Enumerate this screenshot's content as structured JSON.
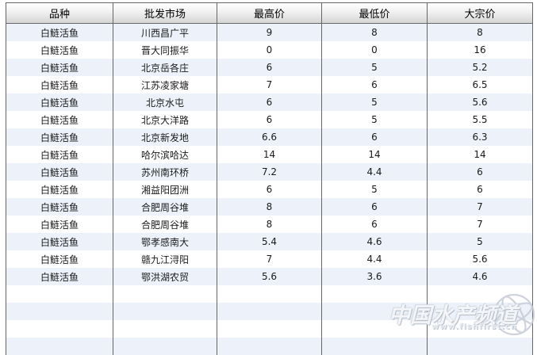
{
  "table": {
    "columns": [
      "品种",
      "批发市场",
      "最高价",
      "最低价",
      "大宗价"
    ],
    "rows": [
      {
        "variety": "白鲢活鱼",
        "market": "川西昌广平",
        "high": "9",
        "low": "8",
        "bulk": "8"
      },
      {
        "variety": "白鲢活鱼",
        "market": "晋大同振华",
        "high": "0",
        "low": "0",
        "bulk": "16"
      },
      {
        "variety": "白鲢活鱼",
        "market": "北京岳各庄",
        "high": "6",
        "low": "5",
        "bulk": "5.2"
      },
      {
        "variety": "白鲢活鱼",
        "market": "江苏凌家塘",
        "high": "7",
        "low": "6",
        "bulk": "6.5"
      },
      {
        "variety": "白鲢活鱼",
        "market": "北京水屯",
        "high": "6",
        "low": "5",
        "bulk": "5.6"
      },
      {
        "variety": "白鲢活鱼",
        "market": "北京大洋路",
        "high": "6",
        "low": "5",
        "bulk": "5.5"
      },
      {
        "variety": "白鲢活鱼",
        "market": "北京新发地",
        "high": "6.6",
        "low": "6",
        "bulk": "6.3"
      },
      {
        "variety": "白鲢活鱼",
        "market": "哈尔滨哈达",
        "high": "14",
        "low": "14",
        "bulk": "14"
      },
      {
        "variety": "白鲢活鱼",
        "market": "苏州南环桥",
        "high": "7.2",
        "low": "4.4",
        "bulk": "6"
      },
      {
        "variety": "白鲢活鱼",
        "market": "湘益阳团洲",
        "high": "6",
        "low": "5",
        "bulk": "6"
      },
      {
        "variety": "白鲢活鱼",
        "market": "合肥周谷堆",
        "high": "8",
        "low": "6",
        "bulk": "7"
      },
      {
        "variety": "白鲢活鱼",
        "market": "合肥周谷堆",
        "high": "8",
        "low": "6",
        "bulk": "7"
      },
      {
        "variety": "白鲢活鱼",
        "market": "鄂孝感南大",
        "high": "5.4",
        "low": "4.6",
        "bulk": "5"
      },
      {
        "variety": "白鲢活鱼",
        "market": "赣九江浔阳",
        "high": "7",
        "low": "4.4",
        "bulk": "5.6"
      },
      {
        "variety": "白鲢活鱼",
        "market": "鄂洪湖农贸",
        "high": "5.6",
        "low": "3.6",
        "bulk": "4.6"
      }
    ],
    "empty_row_count": 4
  },
  "watermark": {
    "text": "中国水产频道",
    "url": "www.fishfirst.cn"
  },
  "colors": {
    "row_alt": "#ecf1fa",
    "border": "#666666",
    "header_gradient_top": "#ffffff",
    "header_gradient_bottom": "#d6d6d6"
  }
}
